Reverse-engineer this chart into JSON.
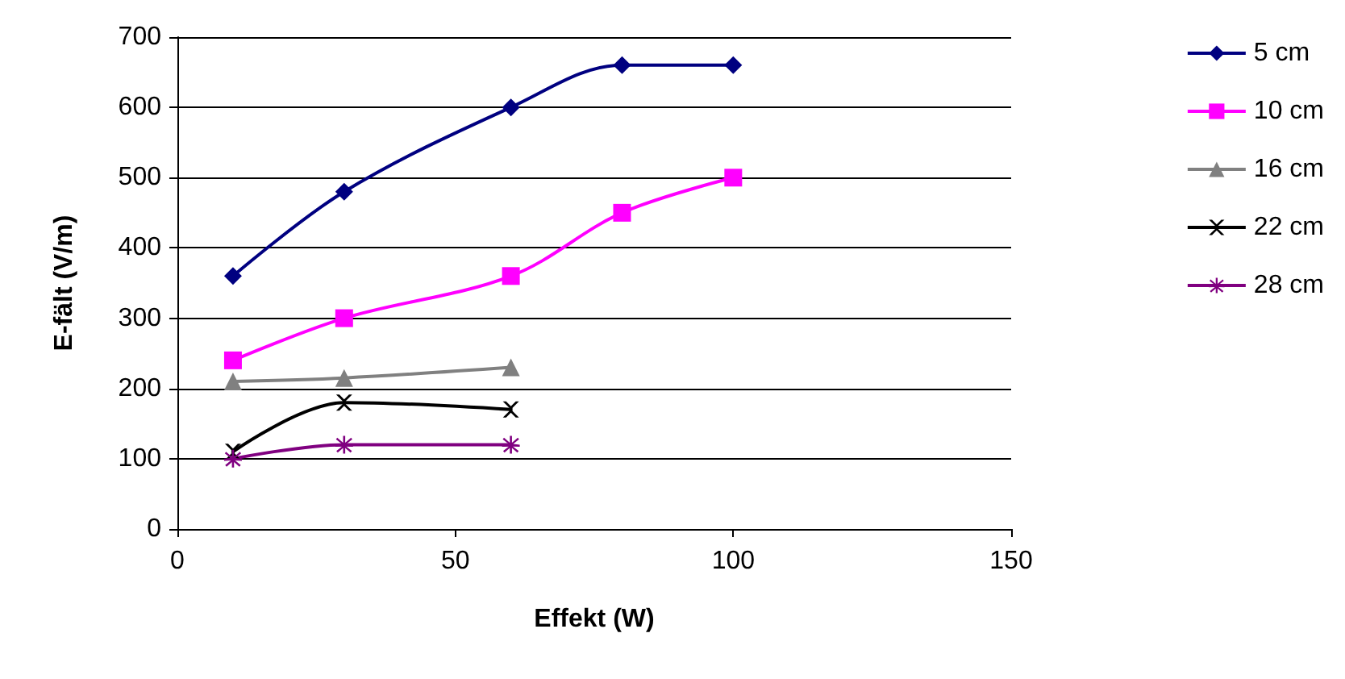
{
  "chart_data": {
    "type": "line",
    "xlabel": "Effekt (W)",
    "ylabel": "E-fält (V/m)",
    "xlim": [
      0,
      150
    ],
    "xticks": [
      0,
      50,
      100,
      150
    ],
    "ylim": [
      0,
      700
    ],
    "yticks": [
      0,
      100,
      200,
      300,
      400,
      500,
      600,
      700
    ],
    "grid": "y",
    "legend": "right",
    "series": [
      {
        "name": "5 cm",
        "color": "#000080",
        "marker": "diamond",
        "x": [
          10,
          30,
          60,
          80,
          100
        ],
        "values": [
          360,
          480,
          600,
          660,
          660
        ]
      },
      {
        "name": "10 cm",
        "color": "#ff00ff",
        "marker": "square",
        "x": [
          10,
          30,
          60,
          80,
          100
        ],
        "values": [
          240,
          300,
          360,
          450,
          500
        ]
      },
      {
        "name": "16 cm",
        "color": "#808080",
        "marker": "triangle",
        "x": [
          10,
          30,
          60
        ],
        "values": [
          210,
          215,
          230
        ]
      },
      {
        "name": "22 cm",
        "color": "#000000",
        "marker": "cross",
        "x": [
          10,
          30,
          60
        ],
        "values": [
          110,
          180,
          170
        ]
      },
      {
        "name": "28 cm",
        "color": "#800080",
        "marker": "star",
        "x": [
          10,
          30,
          60
        ],
        "values": [
          100,
          120,
          120
        ]
      }
    ]
  }
}
